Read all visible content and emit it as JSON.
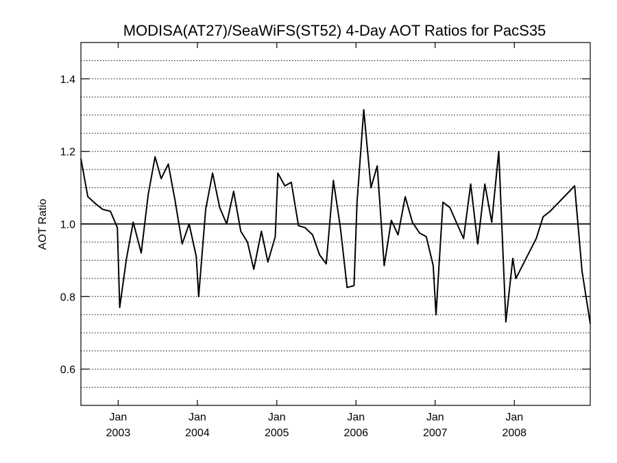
{
  "chart_data": {
    "type": "line",
    "title": "MODISA(AT27)/SeaWiFS(ST52) 4-Day AOT Ratios for PacS35",
    "xlabel": "",
    "ylabel": "AOT Ratio",
    "ylim": [
      0.5,
      1.5
    ],
    "xlim": [
      "2002-07-13",
      "2008-12-16"
    ],
    "yticks": [
      {
        "value": 0.6,
        "label": "0.6"
      },
      {
        "value": 0.8,
        "label": "0.8"
      },
      {
        "value": 1.0,
        "label": "1.0"
      },
      {
        "value": 1.2,
        "label": "1.2"
      },
      {
        "value": 1.4,
        "label": "1.4"
      }
    ],
    "xticks": [
      {
        "date": "2003-01-01",
        "month": "Jan",
        "year": "2003"
      },
      {
        "date": "2004-01-01",
        "month": "Jan",
        "year": "2004"
      },
      {
        "date": "2005-01-01",
        "month": "Jan",
        "year": "2005"
      },
      {
        "date": "2006-01-01",
        "month": "Jan",
        "year": "2006"
      },
      {
        "date": "2007-01-01",
        "month": "Jan",
        "year": "2007"
      },
      {
        "date": "2008-01-01",
        "month": "Jan",
        "year": "2008"
      }
    ],
    "grid": "horizontal dotted, every 0.05",
    "reference_line": 1.0,
    "series": [
      {
        "x": [
          "2002-07-13",
          "2002-08-14",
          "2002-09-20",
          "2002-10-22",
          "2002-11-26",
          "2002-12-28",
          "2003-01-08",
          "2003-02-08",
          "2003-03-11",
          "2003-04-17",
          "2003-05-19",
          "2003-06-20",
          "2003-07-18",
          "2003-08-20",
          "2003-09-20",
          "2003-10-23",
          "2003-11-24",
          "2003-12-27",
          "2004-01-07",
          "2004-02-08",
          "2004-03-11",
          "2004-04-13",
          "2004-05-15",
          "2004-06-16",
          "2004-07-19",
          "2004-08-19",
          "2004-09-17",
          "2004-10-22",
          "2004-11-21",
          "2004-12-25",
          "2005-01-06",
          "2005-02-07",
          "2005-03-09",
          "2005-04-11",
          "2005-05-11",
          "2005-06-15",
          "2005-07-17",
          "2005-08-17",
          "2005-09-19",
          "2005-10-21",
          "2005-11-21",
          "2005-12-23",
          "2006-01-06",
          "2006-02-06",
          "2006-03-11",
          "2006-04-09",
          "2006-05-11",
          "2006-06-13",
          "2006-07-14",
          "2006-08-16",
          "2006-09-18",
          "2006-10-21",
          "2006-11-21",
          "2006-12-23",
          "2007-01-05",
          "2007-02-06",
          "2007-03-10",
          "2007-04-12",
          "2007-05-12",
          "2007-06-14",
          "2007-07-16",
          "2007-08-18",
          "2007-09-19",
          "2007-10-21",
          "2007-11-23",
          "2007-12-25",
          "2008-01-08",
          "2008-04-11",
          "2008-05-13",
          "2008-06-14",
          "2008-10-05",
          "2008-11-08",
          "2008-12-16"
        ],
        "y": [
          1.18,
          1.075,
          1.055,
          1.04,
          1.035,
          0.99,
          0.77,
          0.905,
          1.005,
          0.92,
          1.08,
          1.185,
          1.125,
          1.165,
          1.065,
          0.945,
          1.0,
          0.91,
          0.8,
          1.04,
          1.14,
          1.045,
          1.0,
          1.09,
          0.98,
          0.95,
          0.875,
          0.98,
          0.895,
          0.965,
          1.14,
          1.105,
          1.115,
          0.995,
          0.99,
          0.97,
          0.915,
          0.89,
          1.12,
          0.99,
          0.825,
          0.83,
          1.06,
          1.315,
          1.1,
          1.16,
          0.885,
          1.01,
          0.97,
          1.075,
          1.005,
          0.975,
          0.965,
          0.885,
          0.75,
          1.06,
          1.045,
          1.0,
          0.96,
          1.11,
          0.945,
          1.11,
          1.005,
          1.2,
          0.73,
          0.905,
          0.85,
          0.96,
          1.02,
          1.035,
          1.105,
          0.87,
          0.725
        ]
      }
    ]
  }
}
